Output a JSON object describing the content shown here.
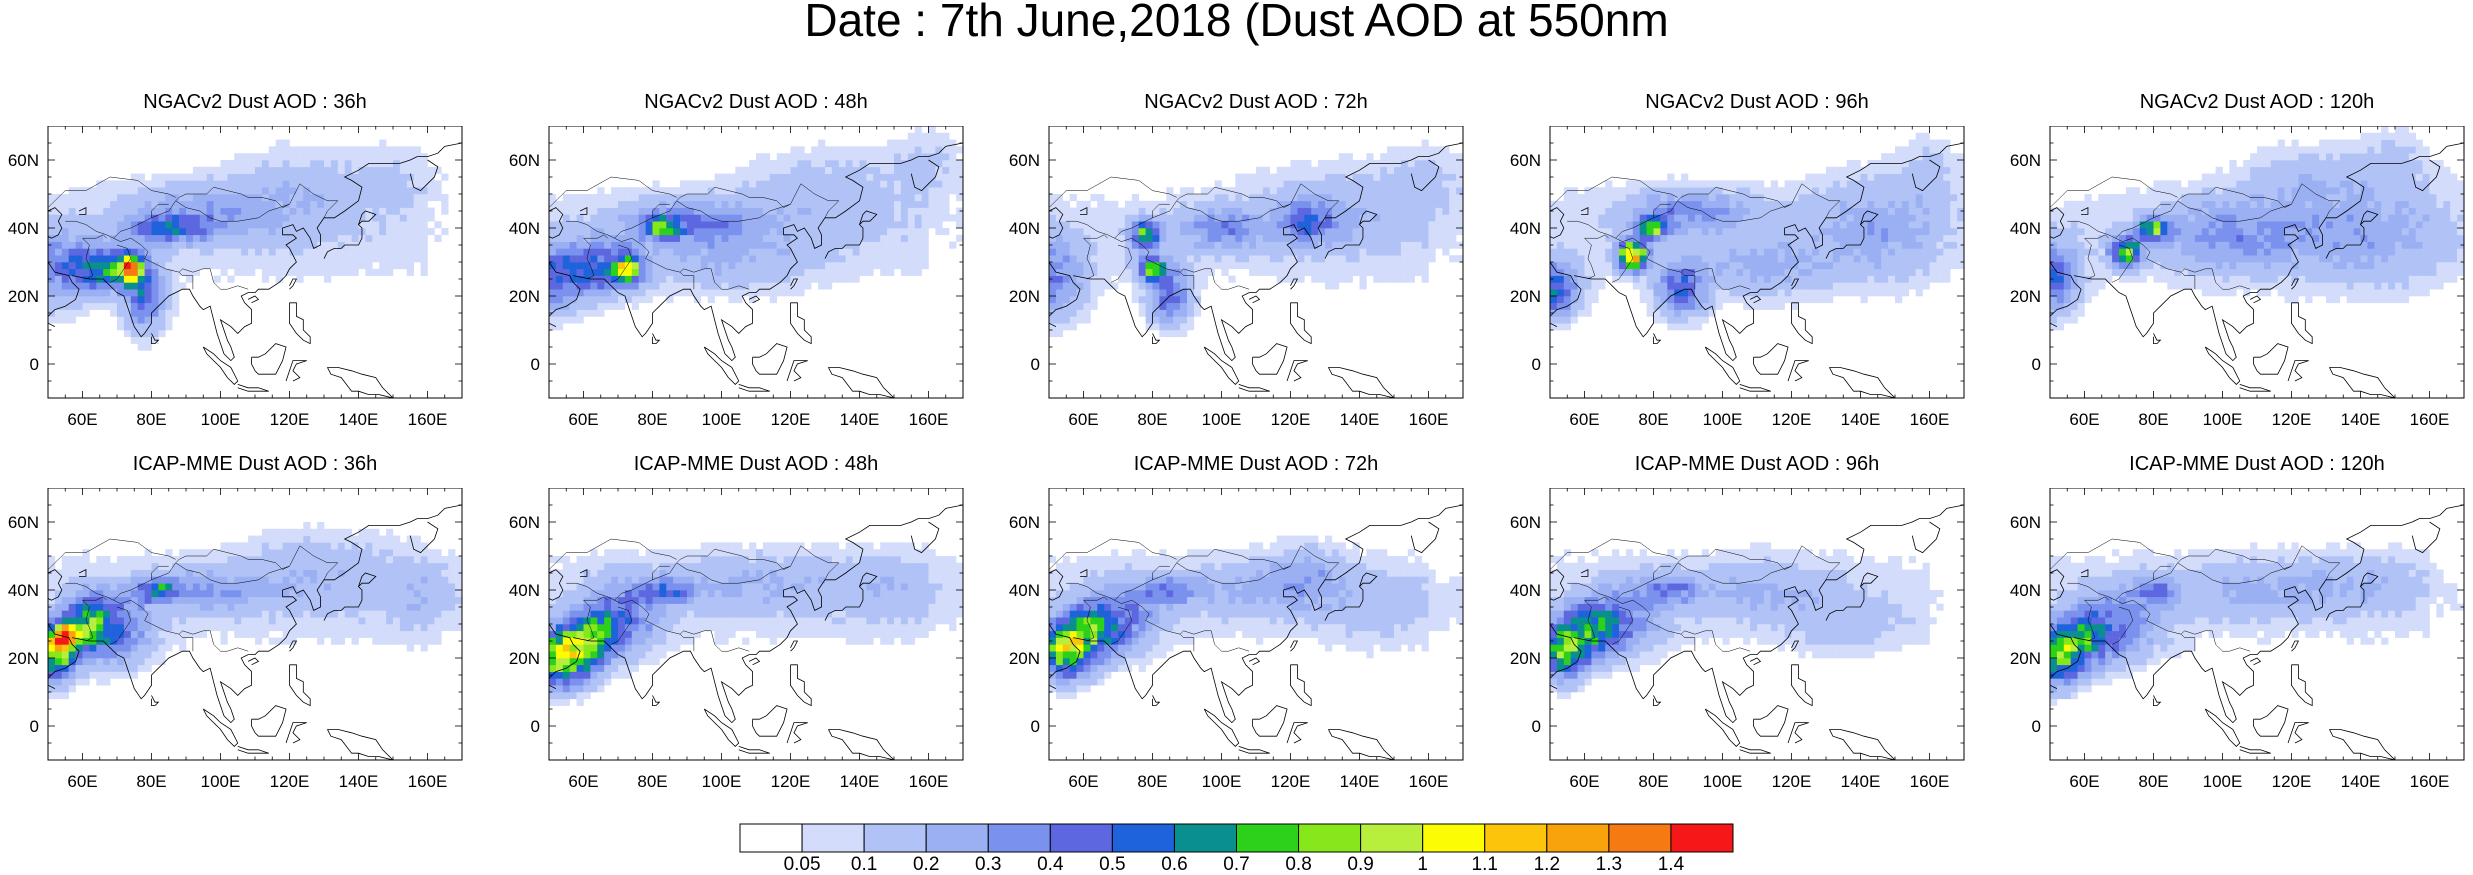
{
  "figure": {
    "title": "Date : 7th June,2018 (Dust AOD at 550nm"
  },
  "map": {
    "lon_range": [
      50,
      170
    ],
    "lat_range": [
      -10,
      70
    ],
    "x_tick_labels": [
      "60E",
      "80E",
      "100E",
      "120E",
      "140E",
      "160E"
    ],
    "x_tick_values": [
      60,
      80,
      100,
      120,
      140,
      160
    ],
    "y_tick_labels": [
      "60N",
      "40N",
      "20N",
      "0"
    ],
    "y_tick_values": [
      60,
      40,
      20,
      0
    ]
  },
  "panels": [
    {
      "title": "NGACv2 Dust AOD : 36h",
      "model": "NGACv2",
      "lead": "36h",
      "blobs": [
        [
          50,
          28,
          10,
          12,
          0.25
        ],
        [
          62,
          28,
          8,
          7,
          0.45
        ],
        [
          72,
          28,
          6,
          5,
          0.65
        ],
        [
          74,
          28,
          2.5,
          3,
          1.0
        ],
        [
          78,
          20,
          6,
          10,
          0.45
        ],
        [
          85,
          40,
          12,
          4,
          0.4
        ],
        [
          95,
          45,
          22,
          8,
          0.2
        ],
        [
          122,
          50,
          20,
          14,
          0.12
        ],
        [
          150,
          55,
          14,
          10,
          0.08
        ]
      ]
    },
    {
      "title": "NGACv2 Dust AOD : 48h",
      "model": "NGACv2",
      "lead": "48h",
      "blobs": [
        [
          50,
          25,
          8,
          10,
          0.4
        ],
        [
          64,
          28,
          10,
          8,
          0.45
        ],
        [
          73,
          28,
          4,
          4,
          0.8
        ],
        [
          83,
          40,
          4,
          3,
          0.6
        ],
        [
          90,
          42,
          18,
          6,
          0.3
        ],
        [
          100,
          32,
          25,
          10,
          0.15
        ],
        [
          130,
          50,
          25,
          14,
          0.12
        ],
        [
          160,
          60,
          10,
          10,
          0.1
        ]
      ]
    },
    {
      "title": "NGACv2 Dust AOD : 72h",
      "model": "NGACv2",
      "lead": "72h",
      "blobs": [
        [
          50,
          25,
          10,
          12,
          0.35
        ],
        [
          78,
          38,
          4,
          4,
          0.75
        ],
        [
          80,
          28,
          4,
          3,
          0.85
        ],
        [
          85,
          20,
          6,
          8,
          0.45
        ],
        [
          100,
          40,
          12,
          6,
          0.3
        ],
        [
          125,
          42,
          8,
          6,
          0.35
        ],
        [
          135,
          45,
          25,
          14,
          0.12
        ],
        [
          160,
          55,
          12,
          10,
          0.1
        ]
      ]
    },
    {
      "title": "NGACv2 Dust AOD : 96h",
      "model": "NGACv2",
      "lead": "96h",
      "blobs": [
        [
          50,
          22,
          8,
          8,
          0.55
        ],
        [
          74,
          32,
          4,
          4,
          1.25
        ],
        [
          80,
          40,
          4,
          3,
          0.75
        ],
        [
          88,
          22,
          7,
          8,
          0.45
        ],
        [
          90,
          45,
          18,
          6,
          0.3
        ],
        [
          112,
          28,
          18,
          8,
          0.2
        ],
        [
          145,
          40,
          20,
          14,
          0.2
        ],
        [
          160,
          58,
          10,
          10,
          0.1
        ]
      ]
    },
    {
      "title": "NGACv2 Dust AOD : 120h",
      "model": "NGACv2",
      "lead": "120h",
      "blobs": [
        [
          50,
          25,
          8,
          10,
          0.45
        ],
        [
          72,
          33,
          4,
          4,
          0.85
        ],
        [
          80,
          40,
          4,
          3,
          0.75
        ],
        [
          100,
          38,
          20,
          10,
          0.25
        ],
        [
          140,
          38,
          28,
          14,
          0.2
        ],
        [
          125,
          55,
          18,
          10,
          0.12
        ],
        [
          150,
          60,
          12,
          10,
          0.1
        ]
      ]
    },
    {
      "title": "ICAP-MME Dust AOD : 36h",
      "model": "ICAP-MME",
      "lead": "36h",
      "blobs": [
        [
          52,
          22,
          6,
          8,
          0.9
        ],
        [
          55,
          26,
          3,
          3,
          1.3
        ],
        [
          62,
          30,
          6,
          8,
          0.6
        ],
        [
          70,
          28,
          10,
          10,
          0.35
        ],
        [
          82,
          40,
          6,
          3,
          0.45
        ],
        [
          95,
          40,
          20,
          6,
          0.2
        ],
        [
          130,
          45,
          25,
          12,
          0.12
        ],
        [
          160,
          38,
          10,
          10,
          0.12
        ]
      ]
    },
    {
      "title": "ICAP-MME Dust AOD : 48h",
      "model": "ICAP-MME",
      "lead": "48h",
      "blobs": [
        [
          54,
          20,
          8,
          8,
          0.85
        ],
        [
          62,
          26,
          8,
          8,
          0.55
        ],
        [
          72,
          32,
          10,
          10,
          0.35
        ],
        [
          85,
          40,
          8,
          4,
          0.35
        ],
        [
          110,
          42,
          25,
          8,
          0.15
        ],
        [
          150,
          40,
          18,
          10,
          0.1
        ]
      ]
    },
    {
      "title": "ICAP-MME Dust AOD : 72h",
      "model": "ICAP-MME",
      "lead": "72h",
      "blobs": [
        [
          54,
          22,
          8,
          8,
          0.75
        ],
        [
          62,
          28,
          8,
          8,
          0.55
        ],
        [
          72,
          32,
          10,
          10,
          0.3
        ],
        [
          85,
          40,
          8,
          4,
          0.3
        ],
        [
          110,
          40,
          22,
          8,
          0.15
        ],
        [
          125,
          45,
          10,
          8,
          0.15
        ],
        [
          145,
          35,
          18,
          10,
          0.1
        ]
      ]
    },
    {
      "title": "ICAP-MME Dust AOD : 96h",
      "model": "ICAP-MME",
      "lead": "96h",
      "blobs": [
        [
          54,
          22,
          6,
          8,
          0.75
        ],
        [
          62,
          28,
          8,
          8,
          0.55
        ],
        [
          72,
          32,
          10,
          10,
          0.3
        ],
        [
          85,
          40,
          8,
          4,
          0.3
        ],
        [
          110,
          40,
          22,
          8,
          0.15
        ],
        [
          135,
          30,
          18,
          8,
          0.1
        ]
      ]
    },
    {
      "title": "ICAP-MME Dust AOD : 120h",
      "model": "ICAP-MME",
      "lead": "120h",
      "blobs": [
        [
          52,
          20,
          6,
          8,
          0.7
        ],
        [
          60,
          25,
          8,
          8,
          0.5
        ],
        [
          70,
          30,
          12,
          10,
          0.3
        ],
        [
          80,
          40,
          6,
          4,
          0.3
        ],
        [
          110,
          40,
          25,
          8,
          0.15
        ],
        [
          140,
          42,
          18,
          8,
          0.12
        ]
      ]
    }
  ],
  "colorbar": {
    "colors": [
      "#ffffff",
      "#d3ddfb",
      "#b1c3f6",
      "#9ab0f3",
      "#7b91ee",
      "#5d68e0",
      "#1e63dc",
      "#0a8f8f",
      "#2bd11a",
      "#86e81a",
      "#b7ef3c",
      "#fcfc04",
      "#fcc40a",
      "#f8a20c",
      "#f67a12",
      "#f61818"
    ],
    "tick_labels": [
      "0.05",
      "0.1",
      "0.2",
      "0.3",
      "0.4",
      "0.5",
      "0.6",
      "0.7",
      "0.8",
      "0.9",
      "1",
      "1.1",
      "1.2",
      "1.3",
      "1.4"
    ],
    "levels": [
      0.05,
      0.1,
      0.2,
      0.3,
      0.4,
      0.5,
      0.6,
      0.7,
      0.8,
      0.9,
      1.0,
      1.1,
      1.2,
      1.3,
      1.4
    ]
  }
}
